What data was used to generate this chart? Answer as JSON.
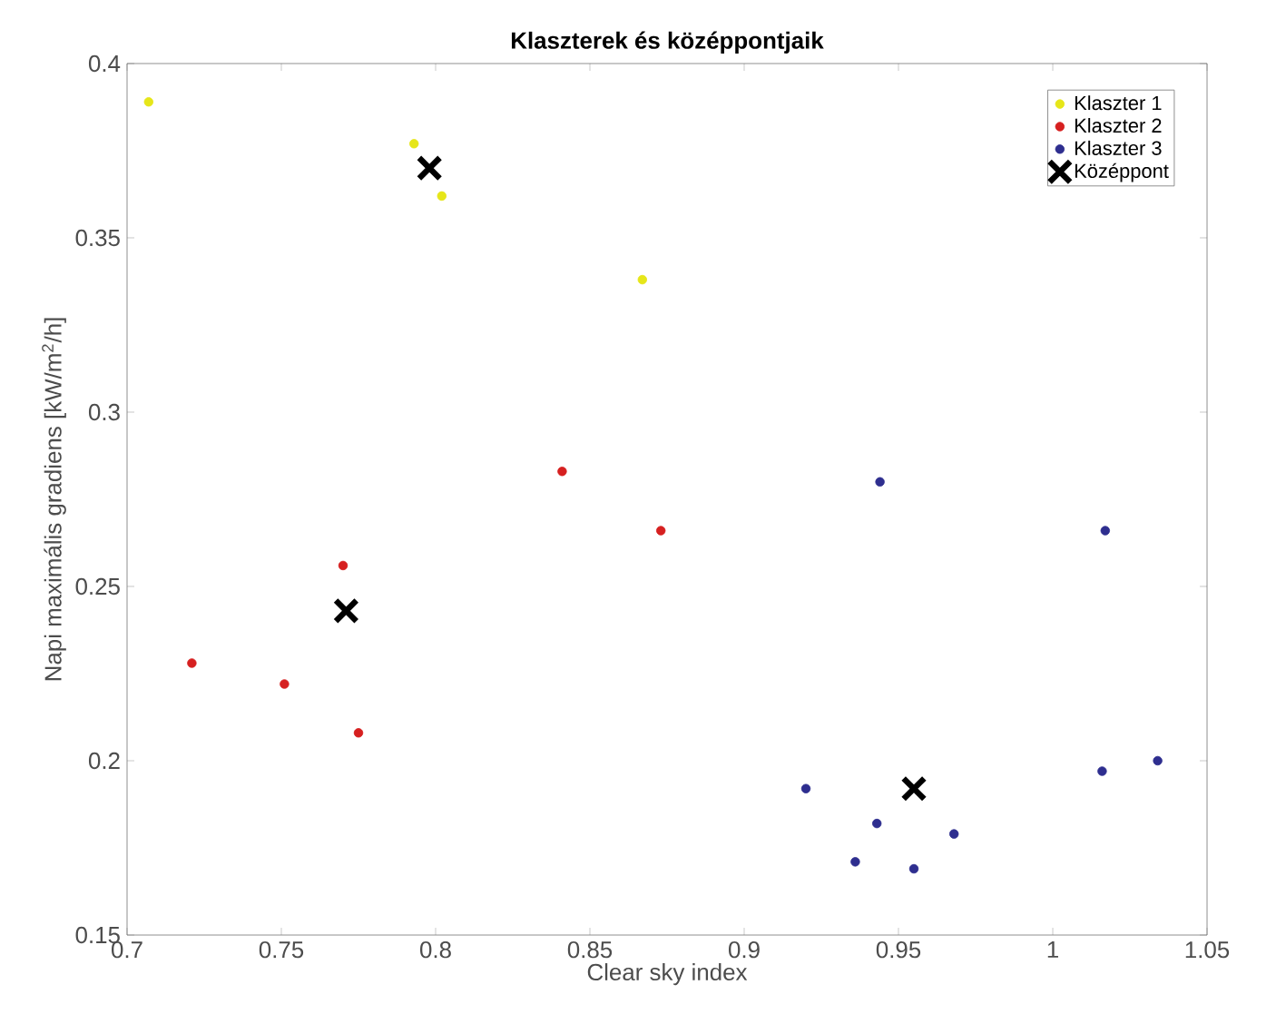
{
  "chart_data": {
    "type": "scatter",
    "title": "Klaszterek és középpontjaik",
    "xlabel": "Clear sky index",
    "ylabel": "Napi maximális gradiens [kW/m$^{2}$/h]",
    "xlim": [
      0.7,
      1.05
    ],
    "ylim": [
      0.15,
      0.4
    ],
    "xticks": [
      0.7,
      0.75,
      0.8,
      0.85,
      0.9,
      0.95,
      1,
      1.05
    ],
    "yticks": [
      0.15,
      0.2,
      0.25,
      0.3,
      0.35,
      0.4
    ],
    "grid": false,
    "legend": "top right",
    "series": [
      {
        "name": "Klaszter 1",
        "color": "#e6e619",
        "marker": "circle",
        "x": [
          0.707,
          0.793,
          0.802,
          0.867
        ],
        "values": [
          0.389,
          0.377,
          0.362,
          0.338
        ]
      },
      {
        "name": "Klaszter 2",
        "color": "#d62020",
        "marker": "circle",
        "x": [
          0.841,
          0.873,
          0.77,
          0.721,
          0.751,
          0.775
        ],
        "values": [
          0.283,
          0.266,
          0.256,
          0.228,
          0.222,
          0.208
        ]
      },
      {
        "name": "Klaszter 3",
        "color": "#2e2e8f",
        "marker": "circle",
        "x": [
          0.944,
          1.017,
          0.92,
          0.943,
          0.936,
          0.955,
          0.968,
          1.016,
          1.034
        ],
        "values": [
          0.28,
          0.266,
          0.192,
          0.182,
          0.171,
          0.169,
          0.179,
          0.197,
          0.2
        ]
      },
      {
        "name": "Középpont",
        "color": "#000000",
        "marker": "cross",
        "x": [
          0.798,
          0.771,
          0.955
        ],
        "values": [
          0.37,
          0.243,
          0.192
        ]
      }
    ]
  }
}
